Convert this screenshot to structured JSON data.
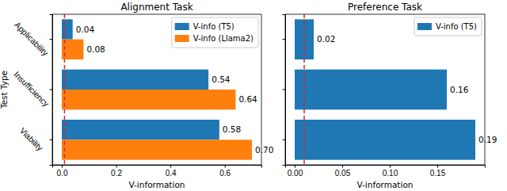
{
  "chart_data": [
    {
      "type": "bar",
      "orientation": "horizontal",
      "title": "Alignment Task",
      "ylabel": "Test Type",
      "xlabel": "V-information",
      "categories": [
        "Applicability",
        "Insufficiency",
        "Viability"
      ],
      "series": [
        {
          "name": "V-info (T5)",
          "color": "#1f77b4",
          "values": [
            0.04,
            0.54,
            0.58
          ]
        },
        {
          "name": "V-info (Llama2)",
          "color": "#ff7f0e",
          "values": [
            0.08,
            0.64,
            0.7
          ],
          "value_labels": [
            "0.08",
            "0.64",
            "0.70"
          ]
        }
      ],
      "xlim": [
        -0.035,
        0.735
      ],
      "xticks": [
        {
          "value": 0,
          "label": "0.0"
        },
        0.2,
        0.4,
        0.6
      ],
      "reference_line": 0.01,
      "data_labels": true,
      "legend": "upper right"
    },
    {
      "type": "bar",
      "orientation": "horizontal",
      "title": "Preference Task",
      "xlabel": "V-information",
      "categories": [
        null,
        null,
        null
      ],
      "series": [
        {
          "name": "V-info (T5)",
          "color": "#1f77b4",
          "values": [
            0.02,
            0.16,
            0.19
          ]
        }
      ],
      "xlim": [
        -0.01,
        0.2
      ],
      "xticks": [
        {
          "value": 0,
          "label": "0.00"
        },
        {
          "value": 0.05,
          "label": "0.05"
        },
        {
          "value": 0.1,
          "label": "0.10"
        },
        {
          "value": 0.15,
          "label": "0.15"
        }
      ],
      "reference_line": 0.01,
      "data_labels": true,
      "legend": "upper right",
      "tick_labels": "x"
    }
  ]
}
